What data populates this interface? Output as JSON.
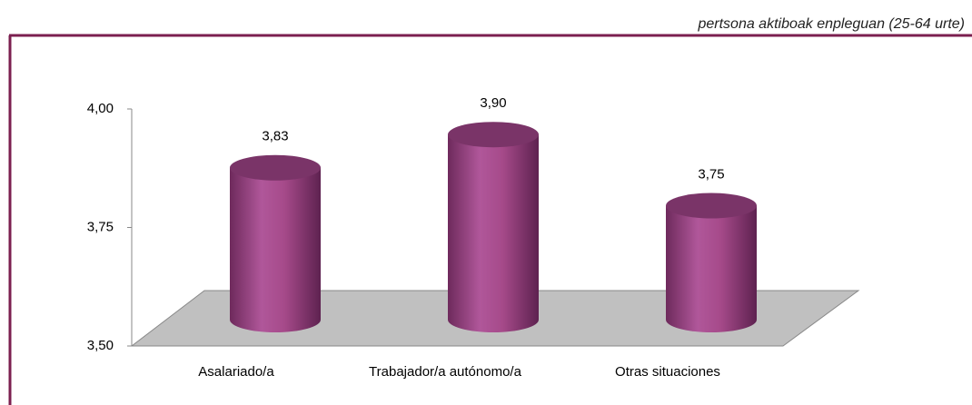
{
  "chart_data": {
    "type": "bar",
    "subtitle": "pertsona aktiboak enpleguan (25-64 urte)",
    "categories": [
      "Asalariado/a",
      "Trabajador/a autónomo/a",
      "Otras situaciones"
    ],
    "values": [
      3.83,
      3.9,
      3.75
    ],
    "value_labels": [
      "3,83",
      "3,90",
      "3,75"
    ],
    "color": "#a64a8a",
    "ylim": [
      3.5,
      4.0
    ],
    "yticks": [
      {
        "value": 3.5,
        "label": "3,50"
      },
      {
        "value": 3.75,
        "label": "3,75"
      },
      {
        "value": 4.0,
        "label": "4,00"
      }
    ],
    "grid": false
  }
}
